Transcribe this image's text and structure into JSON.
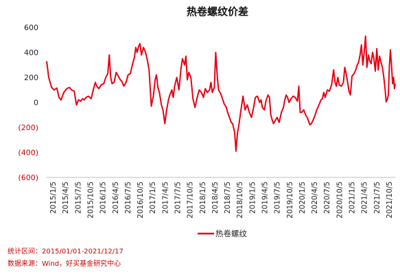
{
  "chart_data": {
    "type": "line",
    "title": "热卷螺纹价差",
    "xlabel": "",
    "ylabel": "",
    "ylim": [
      -600,
      600
    ],
    "yticks": [
      {
        "value": 600,
        "label": "600"
      },
      {
        "value": 400,
        "label": "400"
      },
      {
        "value": 200,
        "label": "200"
      },
      {
        "value": 0,
        "label": "0"
      },
      {
        "value": -200,
        "label": "(200)"
      },
      {
        "value": -400,
        "label": "(400)"
      },
      {
        "value": -600,
        "label": "(600)"
      }
    ],
    "xticks": [
      "2015/1/5",
      "2015/4/5",
      "2015/7/5",
      "2015/10/5",
      "2016/1/5",
      "2016/4/5",
      "2016/7/5",
      "2016/10/5",
      "2017/1/5",
      "2017/4/5",
      "2017/7/5",
      "2017/10/5",
      "2018/1/5",
      "2018/4/5",
      "2018/7/5",
      "2018/10/5",
      "2019/1/5",
      "2019/4/5",
      "2019/7/5",
      "2019/10/5",
      "2020/1/5",
      "2020/4/5",
      "2020/7/5",
      "2020/10/5",
      "2021/1/5",
      "2021/4/5",
      "2021/7/5",
      "2021/10/5"
    ],
    "xrange": [
      "2015-01-05",
      "2021-12-17"
    ],
    "legend": "bottom-center",
    "grid": false,
    "series": [
      {
        "name": "热卷螺纹",
        "color": "#e60012",
        "points": [
          [
            "2015-01-05",
            330
          ],
          [
            "2015-01-20",
            200
          ],
          [
            "2015-02-10",
            120
          ],
          [
            "2015-03-01",
            100
          ],
          [
            "2015-03-20",
            115
          ],
          [
            "2015-04-05",
            40
          ],
          [
            "2015-04-20",
            20
          ],
          [
            "2015-05-10",
            80
          ],
          [
            "2015-06-01",
            110
          ],
          [
            "2015-06-20",
            120
          ],
          [
            "2015-07-05",
            100
          ],
          [
            "2015-07-25",
            90
          ],
          [
            "2015-08-10",
            -20
          ],
          [
            "2015-08-25",
            20
          ],
          [
            "2015-09-10",
            10
          ],
          [
            "2015-09-25",
            30
          ],
          [
            "2015-10-05",
            20
          ],
          [
            "2015-10-20",
            40
          ],
          [
            "2015-11-05",
            50
          ],
          [
            "2015-11-25",
            30
          ],
          [
            "2015-12-10",
            100
          ],
          [
            "2015-12-25",
            160
          ],
          [
            "2016-01-05",
            130
          ],
          [
            "2016-01-20",
            110
          ],
          [
            "2016-02-05",
            140
          ],
          [
            "2016-02-25",
            150
          ],
          [
            "2016-03-10",
            200
          ],
          [
            "2016-03-25",
            230
          ],
          [
            "2016-04-05",
            380
          ],
          [
            "2016-04-15",
            200
          ],
          [
            "2016-04-25",
            150
          ],
          [
            "2016-05-10",
            160
          ],
          [
            "2016-05-25",
            240
          ],
          [
            "2016-06-10",
            210
          ],
          [
            "2016-06-25",
            180
          ],
          [
            "2016-07-05",
            170
          ],
          [
            "2016-07-20",
            130
          ],
          [
            "2016-08-05",
            160
          ],
          [
            "2016-08-20",
            220
          ],
          [
            "2016-09-05",
            230
          ],
          [
            "2016-09-20",
            300
          ],
          [
            "2016-10-05",
            360
          ],
          [
            "2016-10-15",
            440
          ],
          [
            "2016-10-25",
            400
          ],
          [
            "2016-11-05",
            450
          ],
          [
            "2016-11-15",
            470
          ],
          [
            "2016-11-25",
            380
          ],
          [
            "2016-12-10",
            440
          ],
          [
            "2016-12-25",
            400
          ],
          [
            "2017-01-05",
            350
          ],
          [
            "2017-01-20",
            260
          ],
          [
            "2017-02-05",
            -30
          ],
          [
            "2017-02-20",
            50
          ],
          [
            "2017-03-05",
            180
          ],
          [
            "2017-03-15",
            220
          ],
          [
            "2017-03-25",
            120
          ],
          [
            "2017-04-05",
            80
          ],
          [
            "2017-04-20",
            -20
          ],
          [
            "2017-05-01",
            -60
          ],
          [
            "2017-05-15",
            -170
          ],
          [
            "2017-05-25",
            -80
          ],
          [
            "2017-06-10",
            20
          ],
          [
            "2017-06-20",
            60
          ],
          [
            "2017-07-05",
            100
          ],
          [
            "2017-07-15",
            40
          ],
          [
            "2017-07-25",
            130
          ],
          [
            "2017-08-10",
            200
          ],
          [
            "2017-08-25",
            100
          ],
          [
            "2017-09-10",
            280
          ],
          [
            "2017-09-20",
            350
          ],
          [
            "2017-10-05",
            300
          ],
          [
            "2017-10-15",
            370
          ],
          [
            "2017-10-25",
            180
          ],
          [
            "2017-11-05",
            240
          ],
          [
            "2017-11-20",
            200
          ],
          [
            "2017-12-05",
            30
          ],
          [
            "2017-12-20",
            -40
          ],
          [
            "2018-01-05",
            40
          ],
          [
            "2018-01-20",
            100
          ],
          [
            "2018-02-05",
            80
          ],
          [
            "2018-02-20",
            40
          ],
          [
            "2018-03-05",
            110
          ],
          [
            "2018-03-20",
            80
          ],
          [
            "2018-04-05",
            100
          ],
          [
            "2018-04-15",
            160
          ],
          [
            "2018-04-25",
            80
          ],
          [
            "2018-05-10",
            120
          ],
          [
            "2018-05-20",
            400
          ],
          [
            "2018-06-01",
            200
          ],
          [
            "2018-06-10",
            100
          ],
          [
            "2018-06-25",
            70
          ],
          [
            "2018-07-05",
            40
          ],
          [
            "2018-07-20",
            -10
          ],
          [
            "2018-08-05",
            -40
          ],
          [
            "2018-08-15",
            -80
          ],
          [
            "2018-08-25",
            -110
          ],
          [
            "2018-09-10",
            -160
          ],
          [
            "2018-09-20",
            -170
          ],
          [
            "2018-10-05",
            -240
          ],
          [
            "2018-10-15",
            -390
          ],
          [
            "2018-10-25",
            -250
          ],
          [
            "2018-11-05",
            -180
          ],
          [
            "2018-11-15",
            -100
          ],
          [
            "2018-12-05",
            50
          ],
          [
            "2018-12-20",
            -60
          ],
          [
            "2019-01-05",
            -20
          ],
          [
            "2019-01-20",
            -80
          ],
          [
            "2019-02-05",
            -120
          ],
          [
            "2019-02-20",
            -40
          ],
          [
            "2019-03-05",
            40
          ],
          [
            "2019-03-20",
            50
          ],
          [
            "2019-04-05",
            0
          ],
          [
            "2019-04-15",
            20
          ],
          [
            "2019-04-25",
            -40
          ],
          [
            "2019-05-10",
            -60
          ],
          [
            "2019-05-20",
            10
          ],
          [
            "2019-06-05",
            60
          ],
          [
            "2019-06-15",
            40
          ],
          [
            "2019-06-25",
            -100
          ],
          [
            "2019-07-05",
            -140
          ],
          [
            "2019-07-15",
            -170
          ],
          [
            "2019-07-25",
            -150
          ],
          [
            "2019-08-10",
            -120
          ],
          [
            "2019-08-25",
            -160
          ],
          [
            "2019-09-10",
            -80
          ],
          [
            "2019-09-25",
            -40
          ],
          [
            "2019-10-05",
            20
          ],
          [
            "2019-10-15",
            60
          ],
          [
            "2019-10-25",
            40
          ],
          [
            "2019-11-05",
            0
          ],
          [
            "2019-11-20",
            30
          ],
          [
            "2019-12-05",
            50
          ],
          [
            "2019-12-20",
            40
          ],
          [
            "2020-01-05",
            10
          ],
          [
            "2020-01-15",
            130
          ],
          [
            "2020-01-25",
            -80
          ],
          [
            "2020-02-05",
            -80
          ],
          [
            "2020-02-20",
            -60
          ],
          [
            "2020-03-05",
            -100
          ],
          [
            "2020-03-20",
            -130
          ],
          [
            "2020-04-05",
            -180
          ],
          [
            "2020-04-15",
            -170
          ],
          [
            "2020-04-25",
            -150
          ],
          [
            "2020-05-10",
            -110
          ],
          [
            "2020-05-25",
            -60
          ],
          [
            "2020-06-10",
            -20
          ],
          [
            "2020-06-25",
            20
          ],
          [
            "2020-07-05",
            30
          ],
          [
            "2020-07-15",
            80
          ],
          [
            "2020-07-25",
            40
          ],
          [
            "2020-08-10",
            100
          ],
          [
            "2020-08-25",
            90
          ],
          [
            "2020-09-10",
            140
          ],
          [
            "2020-09-25",
            260
          ],
          [
            "2020-10-05",
            160
          ],
          [
            "2020-10-15",
            130
          ],
          [
            "2020-10-25",
            200
          ],
          [
            "2020-11-05",
            140
          ],
          [
            "2020-11-20",
            130
          ],
          [
            "2020-12-05",
            160
          ],
          [
            "2020-12-15",
            280
          ],
          [
            "2020-12-25",
            230
          ],
          [
            "2021-01-05",
            160
          ],
          [
            "2021-01-15",
            90
          ],
          [
            "2021-01-25",
            60
          ],
          [
            "2021-02-05",
            210
          ],
          [
            "2021-02-20",
            230
          ],
          [
            "2021-03-05",
            260
          ],
          [
            "2021-03-15",
            300
          ],
          [
            "2021-03-25",
            320
          ],
          [
            "2021-04-05",
            380
          ],
          [
            "2021-04-15",
            460
          ],
          [
            "2021-04-25",
            300
          ],
          [
            "2021-05-05",
            400
          ],
          [
            "2021-05-15",
            530
          ],
          [
            "2021-05-25",
            280
          ],
          [
            "2021-06-05",
            380
          ],
          [
            "2021-06-15",
            330
          ],
          [
            "2021-06-25",
            310
          ],
          [
            "2021-07-05",
            400
          ],
          [
            "2021-07-15",
            350
          ],
          [
            "2021-07-25",
            250
          ],
          [
            "2021-08-05",
            430
          ],
          [
            "2021-08-15",
            260
          ],
          [
            "2021-08-25",
            370
          ],
          [
            "2021-09-05",
            320
          ],
          [
            "2021-09-15",
            280
          ],
          [
            "2021-09-25",
            200
          ],
          [
            "2021-10-05",
            100
          ],
          [
            "2021-10-12",
            5
          ],
          [
            "2021-10-20",
            20
          ],
          [
            "2021-10-28",
            60
          ],
          [
            "2021-11-05",
            300
          ],
          [
            "2021-11-12",
            420
          ],
          [
            "2021-11-20",
            300
          ],
          [
            "2021-11-28",
            150
          ],
          [
            "2021-12-05",
            200
          ],
          [
            "2021-12-12",
            110
          ],
          [
            "2021-12-17",
            150
          ]
        ]
      }
    ]
  },
  "footnotes": {
    "stat_range": "统计区间：2015/01/01-2021/12/17",
    "source": "数据来源：Wind，好买基金研究中心"
  }
}
